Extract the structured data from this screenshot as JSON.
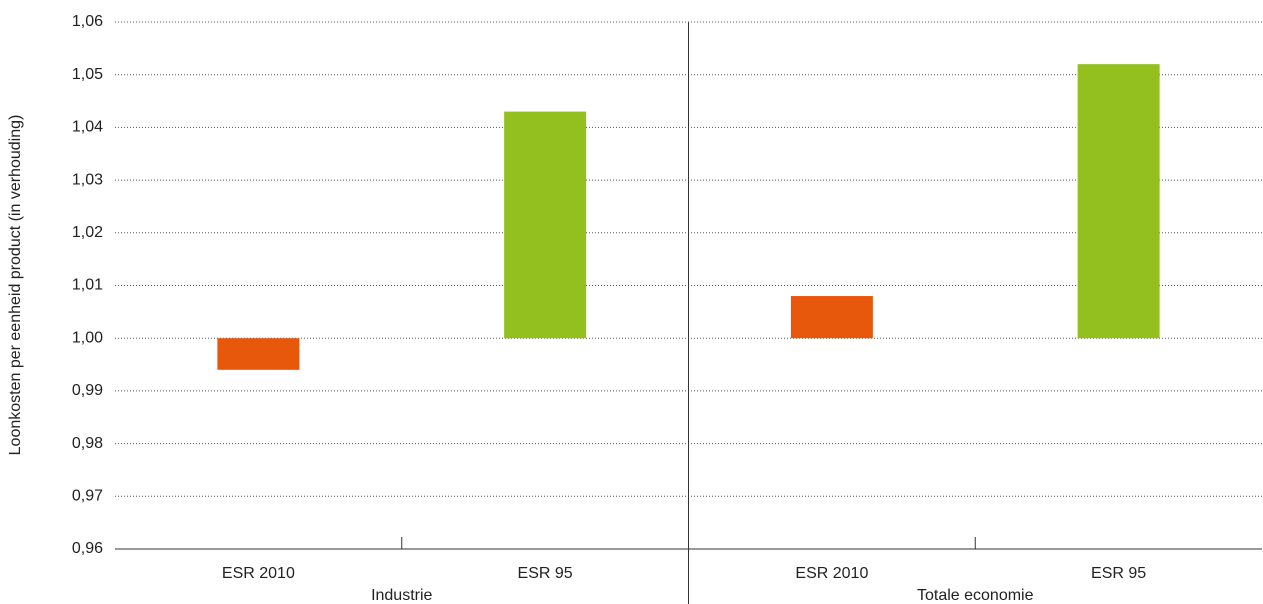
{
  "chart_data": {
    "type": "bar",
    "y_label": "Loonkosten per eenheid product (in verhouding)",
    "groups": [
      "Industrie",
      "Totale economie"
    ],
    "categories": [
      "ESR 2010",
      "ESR 95",
      "ESR 2010",
      "ESR 95"
    ],
    "values": [
      0.994,
      1.043,
      1.008,
      1.052
    ],
    "colors": [
      "#e8580c",
      "#93c01f",
      "#e8580c",
      "#93c01f"
    ],
    "base": 1.0,
    "ylim": [
      0.96,
      1.06
    ],
    "yticks": [
      {
        "value": 0.96,
        "label": "0,96"
      },
      {
        "value": 0.97,
        "label": "0,97"
      },
      {
        "value": 0.98,
        "label": "0,98"
      },
      {
        "value": 0.99,
        "label": "0,99"
      },
      {
        "value": 1.0,
        "label": "1,00"
      },
      {
        "value": 1.01,
        "label": "1,01"
      },
      {
        "value": 1.02,
        "label": "1,02"
      },
      {
        "value": 1.03,
        "label": "1,03"
      },
      {
        "value": 1.04,
        "label": "1,04"
      },
      {
        "value": 1.05,
        "label": "1,05"
      },
      {
        "value": 1.06,
        "label": "1,06"
      }
    ],
    "grid": true
  }
}
